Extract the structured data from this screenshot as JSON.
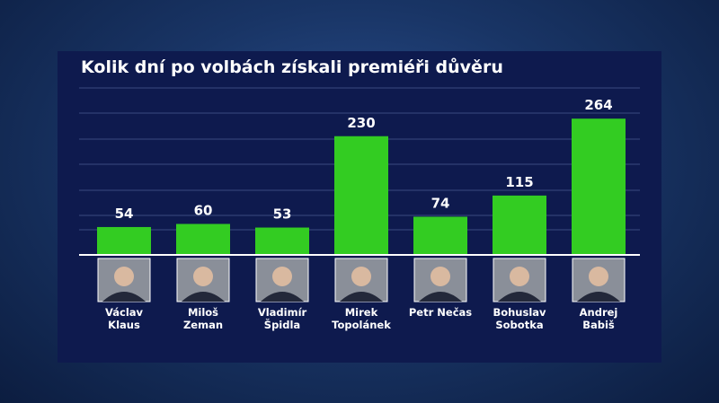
{
  "chart_data": {
    "type": "bar",
    "title": "Kolik dní po volbách získali premiéři důvěru",
    "categories": [
      "Václav Klaus",
      "Miloš Zeman",
      "Vladimír Špidla",
      "Mirek Topolánek",
      "Petr Nečas",
      "Bohuslav Sobotka",
      "Andrej Babiš"
    ],
    "values": [
      54,
      60,
      53,
      230,
      74,
      115,
      264
    ],
    "color": "#33cc22",
    "ylim": [
      0,
      320
    ]
  }
}
